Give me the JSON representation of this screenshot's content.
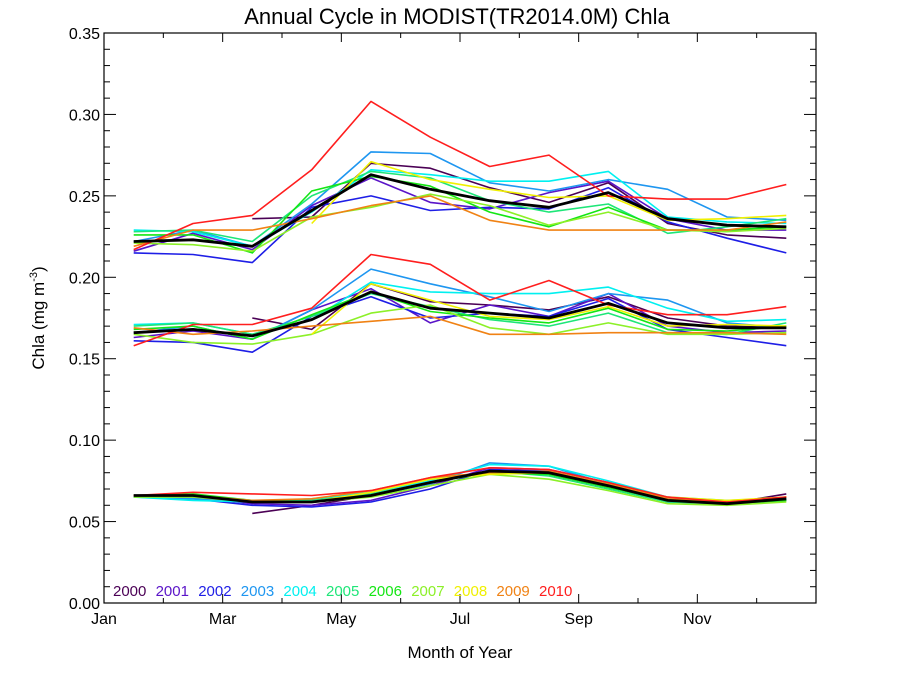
{
  "chart_data": {
    "type": "line",
    "title": "Annual Cycle in MODIST(TR2014.0M) Chla",
    "xlabel": "Month of Year",
    "ylabel": "Chla (mg m",
    "ylabel_sup": "-3",
    "ylabel_end": ")",
    "xlim": [
      0,
      12
    ],
    "ylim": [
      0,
      0.35
    ],
    "x_ticks": [
      {
        "value": 0,
        "label": "Jan"
      },
      {
        "value": 2,
        "label": "Mar"
      },
      {
        "value": 4,
        "label": "May"
      },
      {
        "value": 6,
        "label": "Jul"
      },
      {
        "value": 8,
        "label": "Sep"
      },
      {
        "value": 10,
        "label": "Nov"
      }
    ],
    "y_ticks": [
      "0.00",
      "0.05",
      "0.10",
      "0.15",
      "0.20",
      "0.25",
      "0.30",
      "0.35"
    ],
    "x": [
      0.5,
      1.5,
      2.5,
      3.5,
      4.5,
      5.5,
      6.5,
      7.5,
      8.5,
      9.5,
      10.5,
      11.5
    ],
    "legend_position": "bottom-left",
    "mean_color": "#000000",
    "series": [
      {
        "name": "2000",
        "color": "#4b0055",
        "upper": [
          null,
          null,
          0.236,
          0.237,
          0.27,
          0.267,
          0.255,
          0.246,
          0.258,
          0.233,
          0.226,
          0.224
        ],
        "middle": [
          null,
          null,
          0.175,
          0.168,
          0.196,
          0.185,
          0.183,
          0.18,
          0.188,
          0.175,
          0.17,
          0.169
        ],
        "lower": [
          null,
          null,
          0.055,
          0.06,
          0.066,
          0.075,
          0.081,
          0.079,
          0.071,
          0.063,
          0.061,
          0.067
        ]
      },
      {
        "name": "2001",
        "color": "#5a14c8",
        "upper": [
          0.216,
          0.227,
          0.217,
          0.244,
          0.261,
          0.246,
          0.242,
          0.252,
          0.259,
          0.236,
          0.229,
          0.229
        ],
        "middle": [
          0.163,
          0.167,
          0.162,
          0.18,
          0.193,
          0.172,
          0.183,
          0.176,
          0.19,
          0.17,
          0.166,
          0.167
        ],
        "lower": [
          0.066,
          0.065,
          0.061,
          0.06,
          0.063,
          0.072,
          0.083,
          0.082,
          0.074,
          0.063,
          0.062,
          0.064
        ]
      },
      {
        "name": "2002",
        "color": "#1e1ee6",
        "upper": [
          0.215,
          0.214,
          0.209,
          0.243,
          0.25,
          0.241,
          0.243,
          0.242,
          0.255,
          0.234,
          0.224,
          0.215
        ],
        "middle": [
          0.161,
          0.16,
          0.154,
          0.176,
          0.188,
          0.175,
          0.178,
          0.176,
          0.187,
          0.168,
          0.163,
          0.158
        ],
        "lower": [
          0.066,
          0.064,
          0.06,
          0.059,
          0.062,
          0.07,
          0.082,
          0.081,
          0.072,
          0.062,
          0.061,
          0.063
        ]
      },
      {
        "name": "2003",
        "color": "#1e96f0",
        "upper": [
          0.222,
          0.229,
          0.219,
          0.245,
          0.277,
          0.276,
          0.258,
          0.253,
          0.26,
          0.254,
          0.237,
          0.235
        ],
        "middle": [
          0.166,
          0.17,
          0.162,
          0.18,
          0.205,
          0.196,
          0.188,
          0.179,
          0.19,
          0.186,
          0.172,
          0.169
        ],
        "lower": [
          0.065,
          0.064,
          0.062,
          0.063,
          0.066,
          0.073,
          0.086,
          0.084,
          0.073,
          0.064,
          0.062,
          0.064
        ]
      },
      {
        "name": "2004",
        "color": "#00f0f0",
        "upper": [
          0.229,
          0.228,
          0.219,
          0.24,
          0.266,
          0.263,
          0.259,
          0.259,
          0.265,
          0.237,
          0.234,
          0.233
        ],
        "middle": [
          0.171,
          0.172,
          0.165,
          0.174,
          0.197,
          0.191,
          0.19,
          0.19,
          0.194,
          0.181,
          0.173,
          0.174
        ],
        "lower": [
          0.065,
          0.063,
          0.062,
          0.064,
          0.068,
          0.075,
          0.085,
          0.084,
          0.075,
          0.065,
          0.063,
          0.064
        ]
      },
      {
        "name": "2005",
        "color": "#1ee678",
        "upper": [
          0.228,
          0.229,
          0.222,
          0.25,
          0.265,
          0.261,
          0.247,
          0.24,
          0.245,
          0.227,
          0.231,
          0.236
        ],
        "middle": [
          0.17,
          0.172,
          0.165,
          0.176,
          0.19,
          0.182,
          0.174,
          0.17,
          0.178,
          0.166,
          0.165,
          0.172
        ],
        "lower": [
          0.066,
          0.066,
          0.063,
          0.063,
          0.067,
          0.074,
          0.081,
          0.078,
          0.07,
          0.062,
          0.061,
          0.063
        ]
      },
      {
        "name": "2006",
        "color": "#14e614",
        "upper": [
          0.226,
          0.226,
          0.215,
          0.253,
          0.262,
          0.256,
          0.24,
          0.231,
          0.243,
          0.229,
          0.229,
          0.231
        ],
        "middle": [
          0.168,
          0.17,
          0.162,
          0.177,
          0.191,
          0.179,
          0.175,
          0.172,
          0.181,
          0.168,
          0.167,
          0.17
        ],
        "lower": [
          0.066,
          0.067,
          0.063,
          0.062,
          0.066,
          0.074,
          0.08,
          0.079,
          0.071,
          0.063,
          0.061,
          0.063
        ]
      },
      {
        "name": "2007",
        "color": "#8cf028",
        "upper": [
          0.221,
          0.22,
          0.216,
          0.237,
          0.243,
          0.251,
          0.244,
          0.232,
          0.24,
          0.229,
          0.228,
          0.23
        ],
        "middle": [
          0.165,
          0.16,
          0.159,
          0.165,
          0.178,
          0.183,
          0.169,
          0.165,
          0.172,
          0.165,
          0.165,
          0.166
        ],
        "lower": [
          0.065,
          0.065,
          0.062,
          0.062,
          0.065,
          0.072,
          0.079,
          0.076,
          0.069,
          0.061,
          0.06,
          0.062
        ]
      },
      {
        "name": "2008",
        "color": "#f0f000",
        "upper": [
          null,
          null,
          null,
          0.233,
          0.271,
          0.26,
          0.254,
          0.249,
          0.25,
          0.235,
          0.236,
          0.238
        ],
        "middle": [
          null,
          null,
          null,
          0.165,
          0.196,
          0.186,
          0.176,
          0.174,
          0.182,
          0.17,
          0.171,
          0.17
        ],
        "lower": [
          null,
          null,
          null,
          0.062,
          0.068,
          0.076,
          0.079,
          0.08,
          0.073,
          0.065,
          0.063,
          0.065
        ]
      },
      {
        "name": "2009",
        "color": "#f08214",
        "upper": [
          0.219,
          0.229,
          0.229,
          0.236,
          0.244,
          0.25,
          0.235,
          0.229,
          0.229,
          0.229,
          0.229,
          0.234
        ],
        "middle": [
          0.169,
          0.165,
          0.167,
          0.17,
          0.173,
          0.176,
          0.165,
          0.165,
          0.166,
          0.166,
          0.166,
          0.165
        ],
        "lower": [
          0.066,
          0.066,
          0.063,
          0.064,
          0.069,
          0.077,
          0.08,
          0.081,
          0.073,
          0.064,
          0.062,
          0.065
        ]
      },
      {
        "name": "2010",
        "color": "#ff1e1e",
        "upper": [
          0.217,
          0.233,
          0.238,
          0.266,
          0.308,
          0.286,
          0.268,
          0.275,
          0.25,
          0.248,
          0.248,
          0.257
        ],
        "middle": [
          0.158,
          0.171,
          0.171,
          0.181,
          0.214,
          0.208,
          0.186,
          0.198,
          0.183,
          0.177,
          0.177,
          0.182
        ],
        "lower": [
          0.066,
          0.068,
          0.067,
          0.066,
          0.069,
          0.077,
          0.083,
          0.082,
          0.074,
          0.065,
          0.062,
          0.065
        ]
      }
    ],
    "mean": {
      "upper": [
        0.222,
        0.223,
        0.219,
        0.241,
        0.263,
        0.254,
        0.247,
        0.243,
        0.252,
        0.236,
        0.232,
        0.231
      ],
      "middle": [
        0.166,
        0.168,
        0.164,
        0.174,
        0.191,
        0.181,
        0.178,
        0.175,
        0.184,
        0.172,
        0.169,
        0.169
      ],
      "lower": [
        0.066,
        0.066,
        0.062,
        0.062,
        0.066,
        0.074,
        0.081,
        0.08,
        0.072,
        0.063,
        0.061,
        0.064
      ]
    }
  }
}
